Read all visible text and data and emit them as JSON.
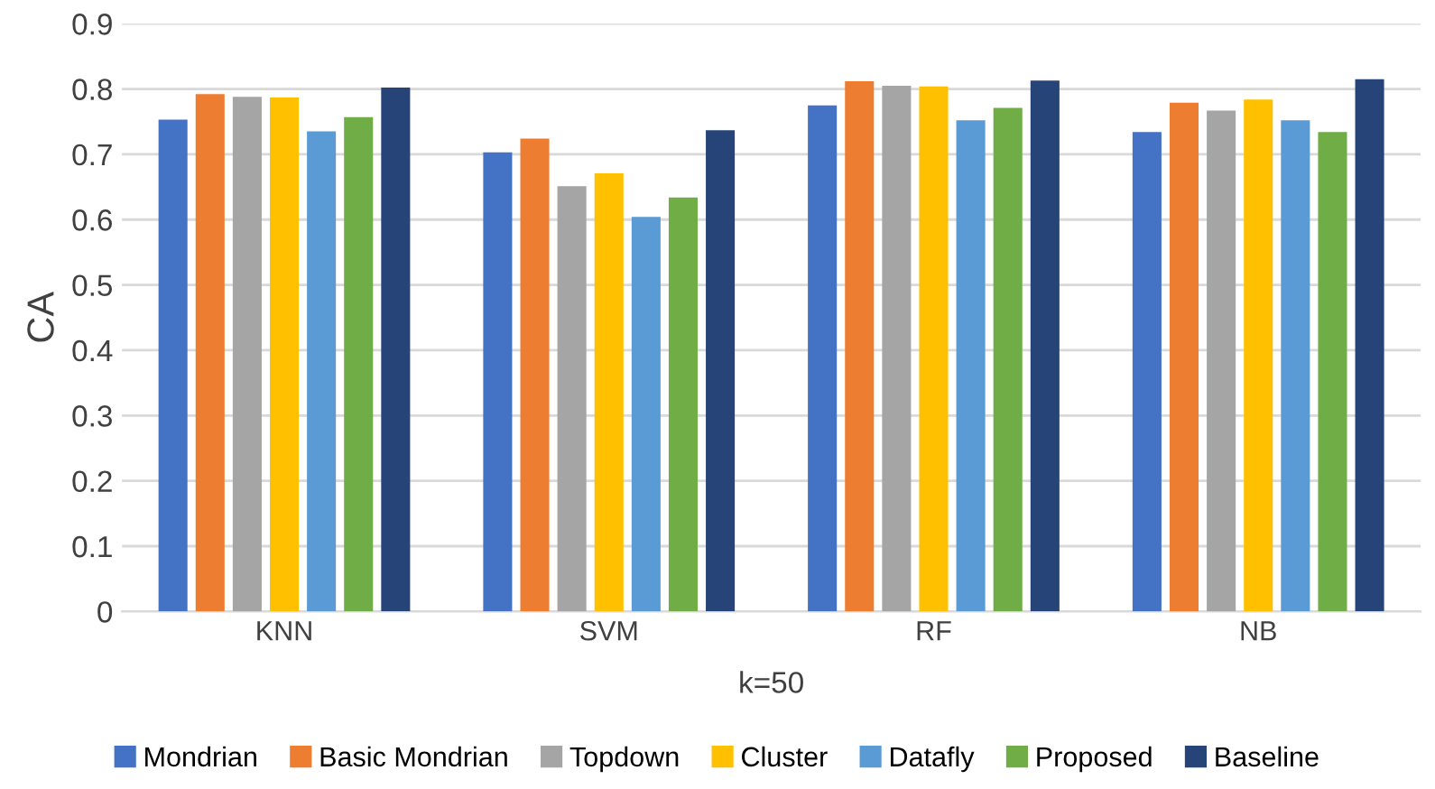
{
  "chart_data": {
    "type": "bar",
    "xlabel": "k=50",
    "ylabel": "CA",
    "categories": [
      "KNN",
      "SVM",
      "RF",
      "NB"
    ],
    "series": [
      {
        "name": "Mondrian",
        "color": "#4472c4",
        "values": [
          0.753,
          0.703,
          0.775,
          0.734
        ]
      },
      {
        "name": "Basic Mondrian",
        "color": "#ed7d31",
        "values": [
          0.792,
          0.724,
          0.812,
          0.779
        ]
      },
      {
        "name": "Topdown",
        "color": "#a5a5a5",
        "values": [
          0.788,
          0.651,
          0.805,
          0.767
        ]
      },
      {
        "name": "Cluster",
        "color": "#ffc000",
        "values": [
          0.787,
          0.671,
          0.804,
          0.784
        ]
      },
      {
        "name": "Datafly",
        "color": "#5b9bd5",
        "values": [
          0.735,
          0.604,
          0.752,
          0.752
        ]
      },
      {
        "name": "Proposed",
        "color": "#70ad47",
        "values": [
          0.757,
          0.634,
          0.771,
          0.734
        ]
      },
      {
        "name": "Baseline",
        "color": "#264478",
        "values": [
          0.802,
          0.737,
          0.813,
          0.815
        ]
      }
    ],
    "ylim": [
      0,
      0.9
    ],
    "yticks": [
      0,
      0.1,
      0.2,
      0.3,
      0.4,
      0.5,
      0.6,
      0.7,
      0.8,
      0.9
    ],
    "grid": "y",
    "legend": "bottom"
  }
}
